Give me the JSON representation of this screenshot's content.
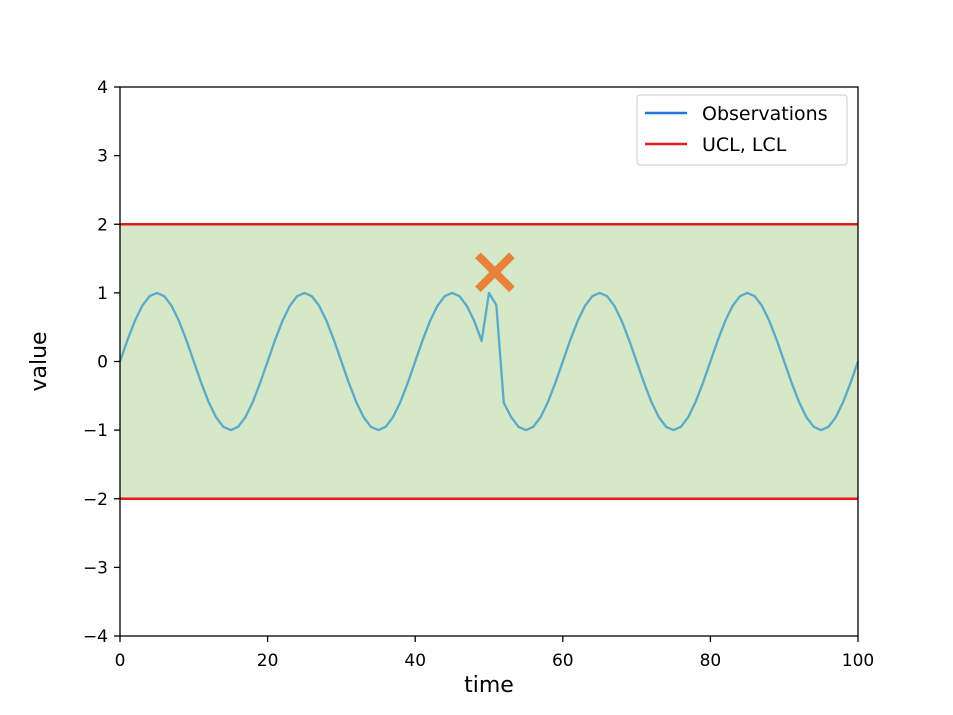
{
  "chart_data": {
    "type": "line",
    "title": "",
    "xlabel": "time",
    "ylabel": "value",
    "xlim": [
      0,
      100
    ],
    "ylim": [
      -4,
      4
    ],
    "x_ticks": [
      0,
      20,
      40,
      60,
      80,
      100
    ],
    "y_ticks": [
      4,
      3,
      2,
      1,
      0,
      -1,
      -2,
      -3,
      -4
    ],
    "x_tick_labels": [
      "0",
      "20",
      "40",
      "60",
      "80",
      "100"
    ],
    "y_tick_labels": [
      "4",
      "3",
      "2",
      "1",
      "0",
      "−1",
      "−2",
      "−3",
      "−4"
    ],
    "grid": false,
    "legend_position": "top-right",
    "band": {
      "lower": -2,
      "upper": 2,
      "color": "#d5e8c8"
    },
    "series": [
      {
        "name": "Observations",
        "color": "#5aaac8",
        "legend_color": "#1f77e0",
        "signal": {
          "amplitude": 1,
          "period": 20,
          "x_start": 0,
          "x_end": 100,
          "step": 1
        },
        "points_override": [
          [
            48,
            0.59
          ],
          [
            49,
            0.3
          ],
          [
            50,
            1.0
          ],
          [
            51,
            0.82
          ],
          [
            52,
            -0.6
          ],
          [
            53,
            -0.81
          ]
        ]
      },
      {
        "name": "UCL, LCL",
        "color": "#e41a1c",
        "values": [
          2,
          -2
        ]
      }
    ],
    "annotations": [
      {
        "type": "marker",
        "symbol": "x",
        "x": 50.8,
        "y": 1.3,
        "color": "#e8823a"
      }
    ]
  }
}
